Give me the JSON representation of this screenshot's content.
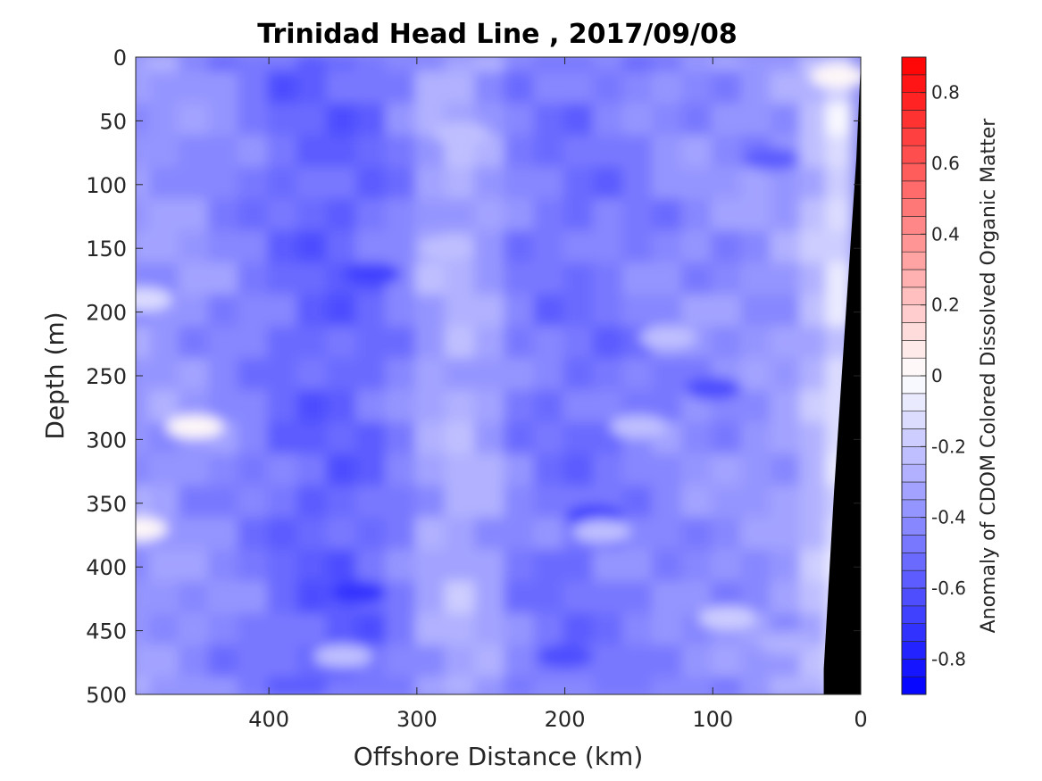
{
  "chart_data": {
    "type": "heatmap",
    "title": "Trinidad Head Line , 2017/09/08",
    "xlabel": "Offshore Distance (km)",
    "ylabel": "Depth (m)",
    "colorbar_label": "Anomaly of CDOM Colored Dissolved Organic Matter",
    "xlim": [
      490,
      0
    ],
    "ylim": [
      0,
      500
    ],
    "x_reversed": true,
    "y_reversed": true,
    "x_ticks": [
      400,
      300,
      200,
      100,
      0
    ],
    "y_ticks": [
      0,
      50,
      100,
      150,
      200,
      250,
      300,
      350,
      400,
      450,
      500
    ],
    "colorbar_range": [
      -0.9,
      0.9
    ],
    "colorbar_ticks": [
      0.8,
      0.6,
      0.4,
      0.2,
      0,
      -0.2,
      -0.4,
      -0.6,
      -0.8
    ],
    "colorbar_levels": 36,
    "colormap": [
      "#0000ff",
      "#ffffff",
      "#ff0000"
    ],
    "bathymetry_color": "#000000",
    "bathymetry": {
      "x": [
        0,
        3,
        10,
        18,
        25,
        25,
        0
      ],
      "depth": [
        5,
        80,
        200,
        340,
        480,
        500,
        500
      ]
    },
    "field": {
      "x": [
        490,
        470,
        450,
        430,
        410,
        390,
        370,
        350,
        330,
        310,
        290,
        270,
        250,
        230,
        210,
        190,
        170,
        150,
        130,
        110,
        90,
        70,
        50,
        30,
        15
      ],
      "depth": [
        0,
        25,
        50,
        75,
        100,
        125,
        150,
        175,
        200,
        225,
        250,
        275,
        300,
        325,
        350,
        375,
        400,
        425,
        450,
        475,
        500
      ],
      "anomaly_profile_by_x": [
        -0.36,
        -0.37,
        -0.38,
        -0.42,
        -0.45,
        -0.52,
        -0.55,
        -0.55,
        -0.52,
        -0.45,
        -0.32,
        -0.28,
        -0.34,
        -0.45,
        -0.48,
        -0.5,
        -0.48,
        -0.44,
        -0.42,
        -0.4,
        -0.4,
        -0.38,
        -0.36,
        -0.26,
        -0.12
      ],
      "features": [
        {
          "x": 450,
          "depth": 290,
          "anomaly": 0.02
        },
        {
          "x": 488,
          "depth": 370,
          "anomaly": 0.03
        },
        {
          "x": 485,
          "depth": 190,
          "anomaly": -0.15
        },
        {
          "x": 15,
          "depth": 15,
          "anomaly": 0.0
        },
        {
          "x": 340,
          "depth": 420,
          "anomaly": -0.72
        },
        {
          "x": 330,
          "depth": 170,
          "anomaly": -0.68
        },
        {
          "x": 180,
          "depth": 360,
          "anomaly": -0.7
        },
        {
          "x": 175,
          "depth": 372,
          "anomaly": -0.22
        },
        {
          "x": 90,
          "depth": 440,
          "anomaly": -0.18
        },
        {
          "x": 150,
          "depth": 290,
          "anomaly": -0.22
        },
        {
          "x": 100,
          "depth": 260,
          "anomaly": -0.65
        },
        {
          "x": 280,
          "depth": 150,
          "anomaly": -0.25
        },
        {
          "x": 270,
          "depth": 60,
          "anomaly": -0.22
        },
        {
          "x": 350,
          "depth": 470,
          "anomaly": -0.25
        },
        {
          "x": 200,
          "depth": 470,
          "anomaly": -0.62
        },
        {
          "x": 60,
          "depth": 80,
          "anomaly": -0.55
        },
        {
          "x": 50,
          "depth": 460,
          "anomaly": -0.28
        },
        {
          "x": 130,
          "depth": 220,
          "anomaly": -0.25
        }
      ]
    }
  }
}
